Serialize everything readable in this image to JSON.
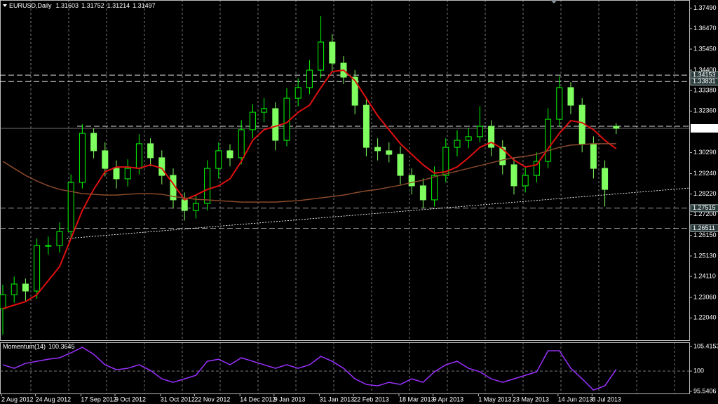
{
  "chart_data": {
    "type": "candlestick",
    "symbol": "EURUSD,Daily",
    "categories": [
      "2 Aug 2012",
      null,
      null,
      "24 Aug 2012",
      null,
      null,
      null,
      "17 Sep 2012",
      null,
      null,
      "9 Oct 2012",
      null,
      null,
      null,
      "31 Oct 2012",
      null,
      null,
      "22 Nov 2012",
      null,
      null,
      null,
      "14 Dec 2012",
      null,
      null,
      "9 Jan 2013",
      null,
      null,
      null,
      "31 Jan 2013",
      null,
      null,
      "22 Feb 2013",
      null,
      null,
      null,
      "18 Mar 2013",
      null,
      null,
      "9 Apr 2013",
      null,
      null,
      null,
      "1 May 2013",
      null,
      null,
      "23 May 2013",
      null,
      null,
      null,
      "14 Jun 2013",
      null,
      null,
      "8 Jul 2013",
      null,
      null
    ],
    "open": [
      1.225,
      1.232,
      1.2373,
      1.2338,
      1.2565,
      1.2565,
      1.2635,
      1.288,
      1.3125,
      1.3038,
      1.295,
      1.2898,
      1.295,
      1.3073,
      1.3003,
      1.2915,
      1.2793,
      1.274,
      1.2775,
      1.295,
      1.3038,
      1.3003,
      1.3143,
      1.323,
      1.3248,
      1.309,
      1.33,
      1.3353,
      1.344,
      1.358,
      1.3475,
      1.3405,
      1.3265,
      1.3055,
      1.3038,
      1.302,
      1.2915,
      1.2863,
      1.2793,
      1.2915,
      1.3055,
      1.309,
      1.3108,
      1.316,
      1.3055,
      1.2968,
      1.2863,
      1.2915,
      1.2985,
      1.3195,
      1.3353,
      1.3265,
      1.3073,
      1.295,
      1.31603
    ],
    "high": [
      1.237,
      1.241,
      1.24,
      1.26,
      1.261,
      1.268,
      1.292,
      1.317,
      1.315,
      1.308,
      1.299,
      1.2995,
      1.312,
      1.31,
      1.304,
      1.295,
      1.283,
      1.282,
      1.299,
      1.308,
      1.307,
      1.319,
      1.327,
      1.33,
      1.328,
      1.335,
      1.34,
      1.349,
      1.371,
      1.362,
      1.351,
      1.344,
      1.33,
      1.31,
      1.308,
      1.306,
      1.295,
      1.29,
      1.296,
      1.31,
      1.314,
      1.315,
      1.326,
      1.319,
      1.309,
      1.3,
      1.296,
      1.303,
      1.325,
      1.341,
      1.338,
      1.33,
      1.311,
      1.299,
      1.31752
    ],
    "low": [
      1.212,
      1.228,
      1.229,
      1.23,
      1.252,
      1.253,
      1.26,
      1.285,
      1.3,
      1.291,
      1.285,
      1.286,
      1.292,
      1.296,
      1.287,
      1.275,
      1.269,
      1.27,
      1.274,
      1.29,
      1.296,
      1.297,
      1.31,
      1.318,
      1.304,
      1.306,
      1.326,
      1.332,
      1.34,
      1.343,
      1.337,
      1.322,
      1.301,
      1.299,
      1.298,
      1.287,
      1.282,
      1.275,
      1.276,
      1.288,
      1.301,
      1.305,
      1.308,
      1.301,
      1.292,
      1.282,
      1.283,
      1.288,
      1.295,
      1.316,
      1.322,
      1.303,
      1.29,
      1.276,
      1.31214
    ],
    "close": [
      1.232,
      1.2373,
      1.2338,
      1.2565,
      1.2565,
      1.2635,
      1.288,
      1.3125,
      1.3038,
      1.295,
      1.2898,
      1.295,
      1.3073,
      1.3003,
      1.2915,
      1.2793,
      1.274,
      1.2775,
      1.295,
      1.3038,
      1.3003,
      1.3143,
      1.323,
      1.3248,
      1.309,
      1.33,
      1.3353,
      1.344,
      1.358,
      1.3475,
      1.3405,
      1.3265,
      1.3055,
      1.3038,
      1.302,
      1.2915,
      1.2863,
      1.2793,
      1.2915,
      1.3055,
      1.309,
      1.3108,
      1.316,
      1.3055,
      1.2968,
      1.2863,
      1.2915,
      1.2985,
      1.3195,
      1.3353,
      1.3265,
      1.3073,
      1.295,
      1.2845,
      1.31497
    ],
    "up_color": "#00ff00",
    "down_color": "#7fff5f",
    "ylim": [
      1.2093,
      1.379
    ],
    "yticks": [
      {
        "value": 1.3749,
        "label": "1.37490"
      },
      {
        "value": 1.3647,
        "label": "1.36470"
      },
      {
        "value": 1.3545,
        "label": "1.35450"
      },
      {
        "value": 1.344,
        "label": "1.34400"
      },
      {
        "value": 1.3338,
        "label": "1.33380"
      },
      {
        "value": 1.3236,
        "label": "1.32360"
      },
      {
        "value": 1.3029,
        "label": "1.30290"
      },
      {
        "value": 1.2924,
        "label": "1.29240"
      },
      {
        "value": 1.2822,
        "label": "1.28220"
      },
      {
        "value": 1.272,
        "label": "1.27200"
      },
      {
        "value": 1.2615,
        "label": "1.26150"
      },
      {
        "value": 1.2513,
        "label": "1.25130"
      },
      {
        "value": 1.2411,
        "label": "1.24110"
      },
      {
        "value": 1.2306,
        "label": "1.23060"
      },
      {
        "value": 1.2204,
        "label": "1.22040"
      }
    ],
    "moving_averages": [
      {
        "color": "#e01010",
        "values": [
          1.225,
          1.2268,
          1.2285,
          1.232,
          1.239,
          1.246,
          1.26,
          1.274,
          1.2845,
          1.2933,
          1.2957,
          1.2957,
          1.295,
          1.2968,
          1.295,
          1.2873,
          1.2793,
          1.2817,
          1.2845,
          1.2863,
          1.2898,
          1.2985,
          1.309,
          1.3143,
          1.316,
          1.3178,
          1.323,
          1.3265,
          1.3353,
          1.3433,
          1.344,
          1.3388,
          1.33,
          1.3213,
          1.3143,
          1.3073,
          1.302,
          1.2968,
          1.2926,
          1.2933,
          1.2957,
          1.3003,
          1.3055,
          1.308,
          1.3048,
          1.2992,
          1.2957,
          1.2968,
          1.3048,
          1.3125,
          1.3188,
          1.3178,
          1.3143,
          1.309,
          1.3048
        ]
      },
      {
        "color": "#8b4a2b",
        "values": [
          1.2985,
          1.295,
          1.2915,
          1.2887,
          1.2863,
          1.2845,
          1.2835,
          1.2824,
          1.2821,
          1.2817,
          1.2817,
          1.2821,
          1.2824,
          1.2824,
          1.2821,
          1.281,
          1.2803,
          1.2796,
          1.2793,
          1.2789,
          1.2786,
          1.2782,
          1.2782,
          1.2782,
          1.2782,
          1.2786,
          1.2789,
          1.2796,
          1.2803,
          1.281,
          1.2817,
          1.2828,
          1.2838,
          1.2845,
          1.2856,
          1.2866,
          1.288,
          1.2891,
          1.2908,
          1.2922,
          1.2936,
          1.295,
          1.2964,
          1.2978,
          1.2992,
          1.3003,
          1.301,
          1.302,
          1.3038,
          1.3055,
          1.3066,
          1.3069,
          1.3073,
          1.3073,
          1.3073
        ]
      }
    ],
    "levels": [
      1.34153,
      1.33831,
      1.27515,
      1.26511
    ],
    "trendline": [
      1.26,
      1.2852
    ],
    "indicator": {
      "title": "Momentum(14)",
      "color": "#9b30ff",
      "ylim": [
        94.92,
        106.34
      ],
      "yticks": [
        105.4153,
        100,
        95.5406
      ],
      "values": [
        101.39,
        100.62,
        101.7,
        102.16,
        102.62,
        102.93,
        104.01,
        105.25,
        103.7,
        101.39,
        100.31,
        100.62,
        101.39,
        100.15,
        98.3,
        97.53,
        98.3,
        99.07,
        102.16,
        102.62,
        101.39,
        102.93,
        102.16,
        101.39,
        100.62,
        101.39,
        100.62,
        101.39,
        103.24,
        102.16,
        100.62,
        98.3,
        97.07,
        96.76,
        97.53,
        97.07,
        98.3,
        97.53,
        99.85,
        101.39,
        102.16,
        100.62,
        99.85,
        98.3,
        97.53,
        98.3,
        99.07,
        99.85,
        104.47,
        104.47,
        100.62,
        98.3,
        95.83,
        96.76,
        100.3645
      ]
    }
  }
}
